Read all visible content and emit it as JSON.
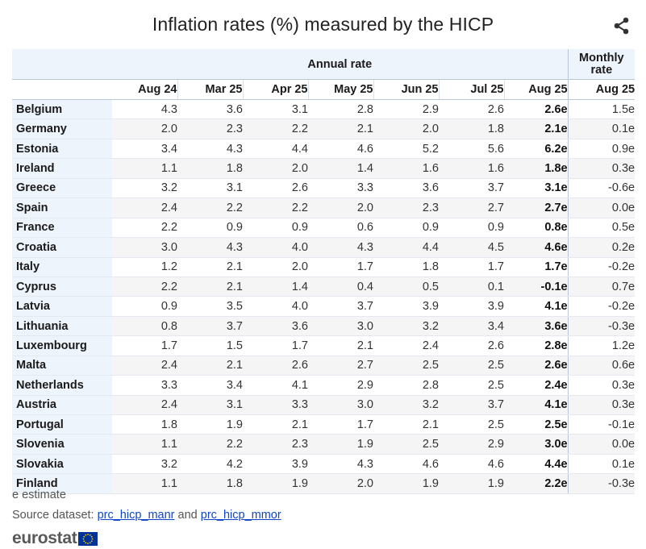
{
  "header": {
    "title": "Inflation rates (%) measured by the HICP",
    "share_icon": "share-icon"
  },
  "table": {
    "group_annual": "Annual rate",
    "group_monthly_line1": "Monthly",
    "group_monthly_line2": "rate",
    "columns": [
      "Aug 24",
      "Mar 25",
      "Apr 25",
      "May 25",
      "Jun 25",
      "Jul 25",
      "Aug 25",
      "Aug 25"
    ],
    "rows": [
      {
        "country": "Belgium",
        "values": [
          "4.3",
          "3.6",
          "3.1",
          "2.8",
          "2.9",
          "2.6",
          "2.6e",
          "1.5e"
        ]
      },
      {
        "country": "Germany",
        "values": [
          "2.0",
          "2.3",
          "2.2",
          "2.1",
          "2.0",
          "1.8",
          "2.1e",
          "0.1e"
        ]
      },
      {
        "country": "Estonia",
        "values": [
          "3.4",
          "4.3",
          "4.4",
          "4.6",
          "5.2",
          "5.6",
          "6.2e",
          "0.9e"
        ]
      },
      {
        "country": "Ireland",
        "values": [
          "1.1",
          "1.8",
          "2.0",
          "1.4",
          "1.6",
          "1.6",
          "1.8e",
          "0.3e"
        ]
      },
      {
        "country": "Greece",
        "values": [
          "3.2",
          "3.1",
          "2.6",
          "3.3",
          "3.6",
          "3.7",
          "3.1e",
          "-0.6e"
        ]
      },
      {
        "country": "Spain",
        "values": [
          "2.4",
          "2.2",
          "2.2",
          "2.0",
          "2.3",
          "2.7",
          "2.7e",
          "0.0e"
        ]
      },
      {
        "country": "France",
        "values": [
          "2.2",
          "0.9",
          "0.9",
          "0.6",
          "0.9",
          "0.9",
          "0.8e",
          "0.5e"
        ]
      },
      {
        "country": "Croatia",
        "values": [
          "3.0",
          "4.3",
          "4.0",
          "4.3",
          "4.4",
          "4.5",
          "4.6e",
          "0.2e"
        ]
      },
      {
        "country": "Italy",
        "values": [
          "1.2",
          "2.1",
          "2.0",
          "1.7",
          "1.8",
          "1.7",
          "1.7e",
          "-0.2e"
        ]
      },
      {
        "country": "Cyprus",
        "values": [
          "2.2",
          "2.1",
          "1.4",
          "0.4",
          "0.5",
          "0.1",
          "-0.1e",
          "0.7e"
        ]
      },
      {
        "country": "Latvia",
        "values": [
          "0.9",
          "3.5",
          "4.0",
          "3.7",
          "3.9",
          "3.9",
          "4.1e",
          "-0.2e"
        ]
      },
      {
        "country": "Lithuania",
        "values": [
          "0.8",
          "3.7",
          "3.6",
          "3.0",
          "3.2",
          "3.4",
          "3.6e",
          "-0.3e"
        ]
      },
      {
        "country": "Luxembourg",
        "values": [
          "1.7",
          "1.5",
          "1.7",
          "2.1",
          "2.4",
          "2.6",
          "2.8e",
          "1.2e"
        ]
      },
      {
        "country": "Malta",
        "values": [
          "2.4",
          "2.1",
          "2.6",
          "2.7",
          "2.5",
          "2.5",
          "2.6e",
          "0.6e"
        ]
      },
      {
        "country": "Netherlands",
        "values": [
          "3.3",
          "3.4",
          "4.1",
          "2.9",
          "2.8",
          "2.5",
          "2.4e",
          "0.3e"
        ]
      },
      {
        "country": "Austria",
        "values": [
          "2.4",
          "3.1",
          "3.3",
          "3.0",
          "3.2",
          "3.7",
          "4.1e",
          "0.3e"
        ]
      },
      {
        "country": "Portugal",
        "values": [
          "1.8",
          "1.9",
          "2.1",
          "1.7",
          "2.1",
          "2.5",
          "2.5e",
          "-0.1e"
        ]
      },
      {
        "country": "Slovenia",
        "values": [
          "1.1",
          "2.2",
          "2.3",
          "1.9",
          "2.5",
          "2.9",
          "3.0e",
          "0.0e"
        ]
      },
      {
        "country": "Slovakia",
        "values": [
          "3.2",
          "4.2",
          "3.9",
          "4.3",
          "4.6",
          "4.6",
          "4.4e",
          "0.1e"
        ]
      },
      {
        "country": "Finland",
        "values": [
          "1.1",
          "1.8",
          "1.9",
          "2.0",
          "1.9",
          "1.9",
          "2.2e",
          "-0.3e"
        ]
      }
    ]
  },
  "footer": {
    "note": "e estimate",
    "source_prefix": "Source dataset: ",
    "source_link_1": "prc_hicp_manr",
    "source_joiner": " and ",
    "source_link_2": "prc_hicp_mmor",
    "brand": "eurostat",
    "flag_icon": "eu-flag-icon"
  },
  "colors": {
    "header_bg": "#eef4fb",
    "row_stripe": "#f5f5f5",
    "link": "#0e47cb",
    "eu_blue": "#003399",
    "eu_yellow": "#ffcc00"
  }
}
